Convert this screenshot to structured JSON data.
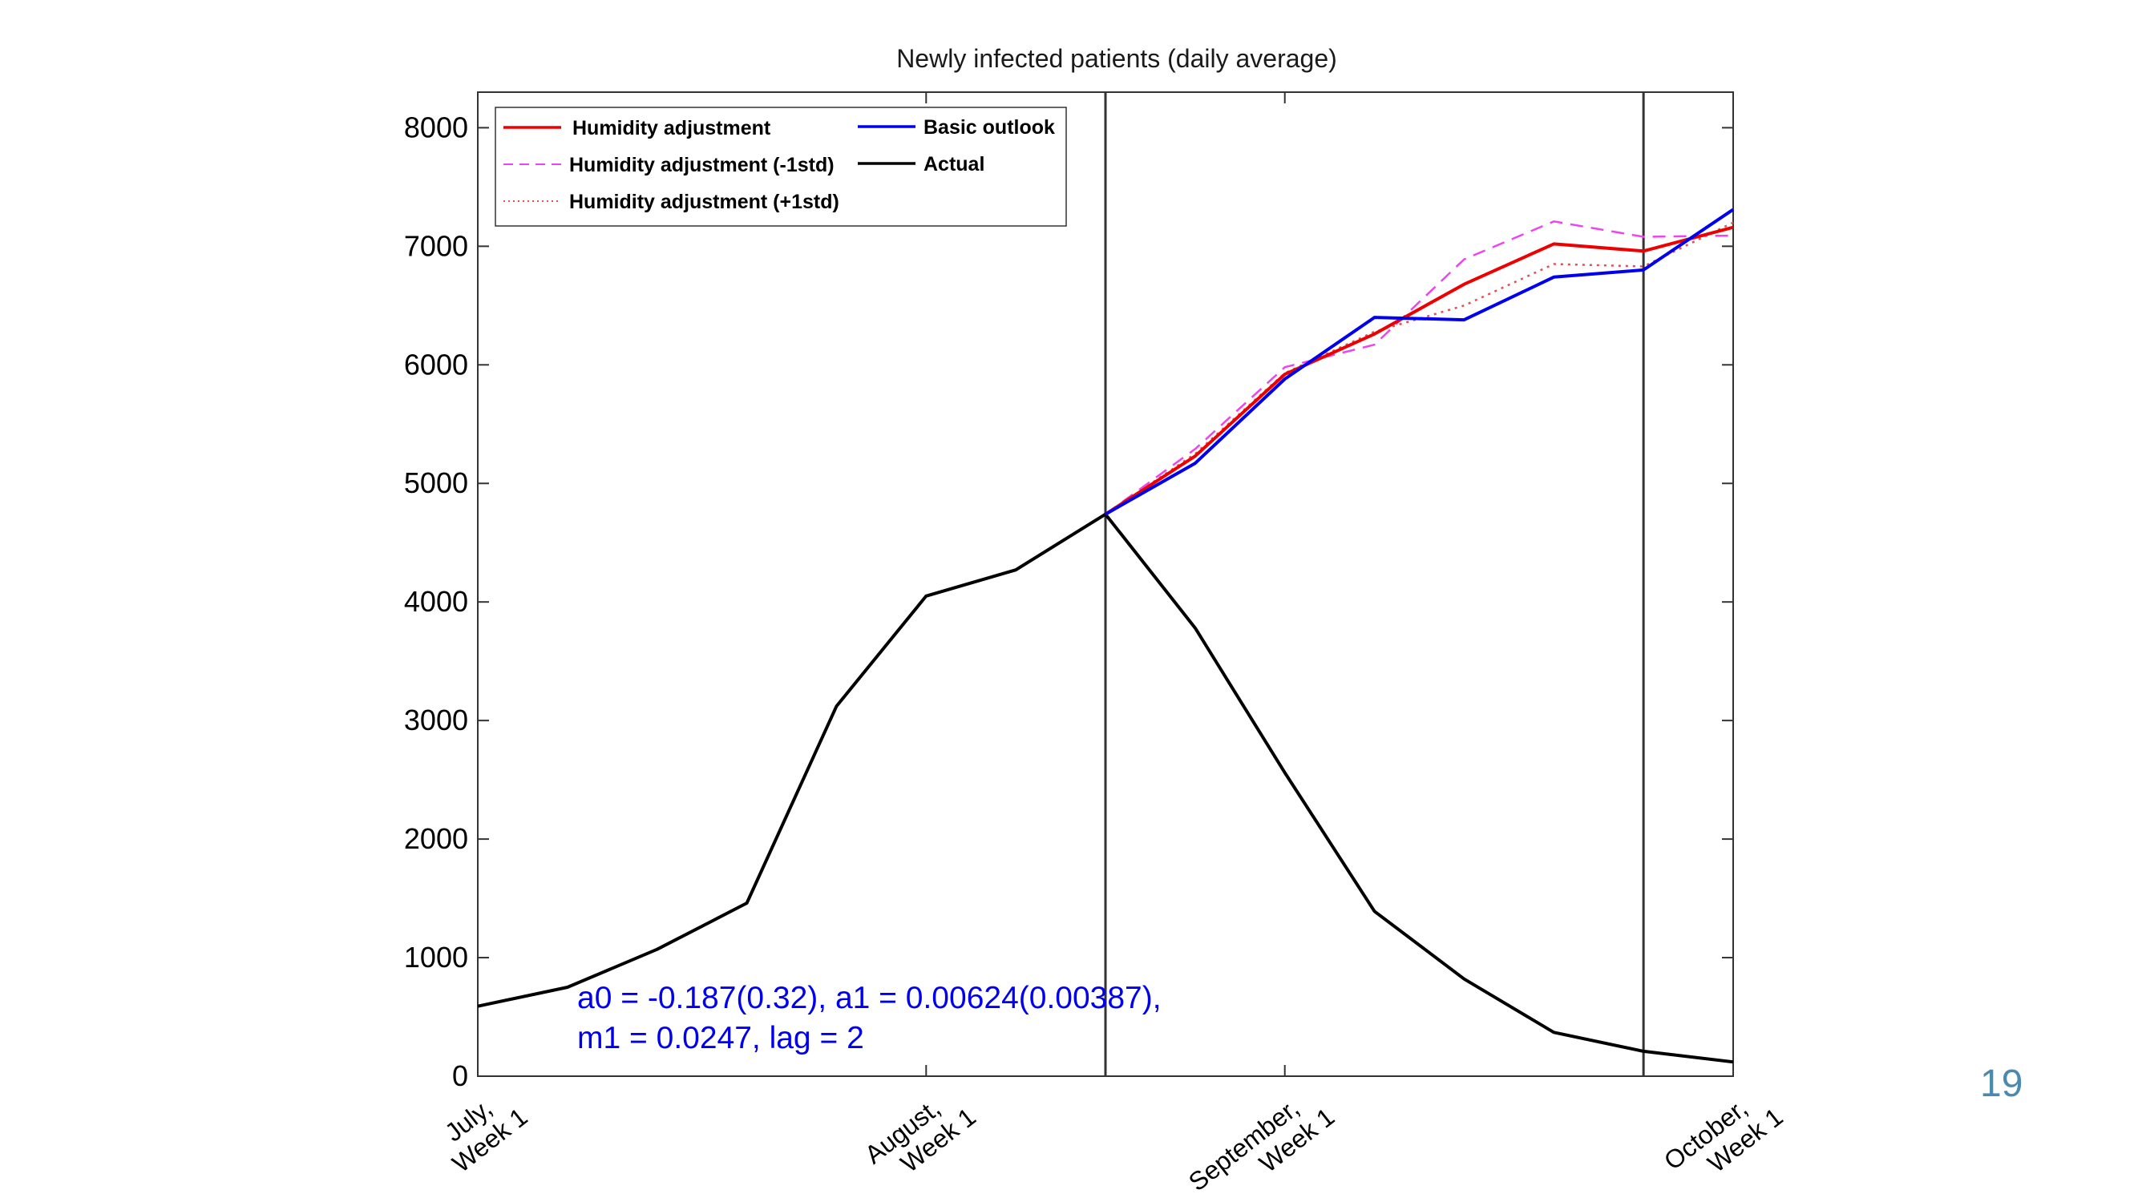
{
  "slide": {
    "page_number": "19"
  },
  "chart_data": {
    "type": "line",
    "title": "Newly infected patients (daily average)",
    "xlabel": "",
    "ylabel": "",
    "x": [
      0,
      1,
      2,
      3,
      4,
      5,
      6,
      7,
      8,
      9,
      10,
      11,
      12,
      13
    ],
    "xlim": [
      0,
      14
    ],
    "ylim": [
      0,
      8300
    ],
    "yticks": [
      0,
      1000,
      2000,
      3000,
      4000,
      5000,
      6000,
      7000,
      8000
    ],
    "xticks": [
      {
        "x": 0,
        "lines": [
          "July,",
          "Week 1"
        ]
      },
      {
        "x": 5,
        "lines": [
          "August,",
          "Week 1"
        ]
      },
      {
        "x": 9,
        "lines": [
          "September,",
          "Week 1"
        ]
      },
      {
        "x": 14,
        "lines": [
          "October,",
          "Week 1"
        ]
      }
    ],
    "vlines": [
      7,
      13
    ],
    "grid": false,
    "legend_placement": "top-left",
    "series": [
      {
        "name": "Humidity adjustment",
        "color": "#ee0000",
        "style": "solid",
        "x": [
          7,
          8,
          9,
          10,
          11,
          12,
          13,
          14
        ],
        "values": [
          4740,
          5230,
          5920,
          6260,
          6680,
          7020,
          6960,
          7160
        ]
      },
      {
        "name": "Humidity adjustment (-1std)",
        "color": "#ee44ee",
        "style": "dashed",
        "x": [
          7,
          8,
          9,
          10,
          11,
          12,
          13,
          14
        ],
        "values": [
          4740,
          5290,
          5980,
          6170,
          6890,
          7210,
          7080,
          7090
        ]
      },
      {
        "name": "Humidity adjustment (+1std)",
        "color": "#e05050",
        "style": "dotted",
        "x": [
          7,
          8,
          9,
          10,
          11,
          12,
          13,
          14
        ],
        "values": [
          4740,
          5250,
          5930,
          6280,
          6500,
          6850,
          6830,
          7200
        ]
      },
      {
        "name": "Basic outlook",
        "color": "#0000ee",
        "style": "solid",
        "x": [
          7,
          8,
          9,
          10,
          11,
          12,
          13,
          14
        ],
        "values": [
          4740,
          5170,
          5880,
          6400,
          6380,
          6740,
          6800,
          7310
        ]
      },
      {
        "name": "Actual",
        "color": "#000000",
        "style": "solid",
        "x": [
          0,
          1,
          2,
          3,
          4,
          5,
          6,
          7,
          8,
          9,
          10,
          11,
          12,
          13,
          14
        ],
        "values": [
          590,
          750,
          1070,
          1460,
          3120,
          4050,
          4270,
          4740,
          3780,
          2560,
          1390,
          820,
          370,
          210,
          120
        ]
      }
    ],
    "legend": {
      "col1": [
        "Humidity adjustment",
        "Humidity adjustment (-1std)",
        "Humidity adjustment (+1std)"
      ],
      "col2": [
        "Basic outlook",
        "Actual"
      ]
    },
    "annotation": {
      "line1": "a0 = -0.187(0.32), a1 = 0.00624(0.00387),",
      "line2": "m1 = 0.0247, lag = 2"
    }
  }
}
